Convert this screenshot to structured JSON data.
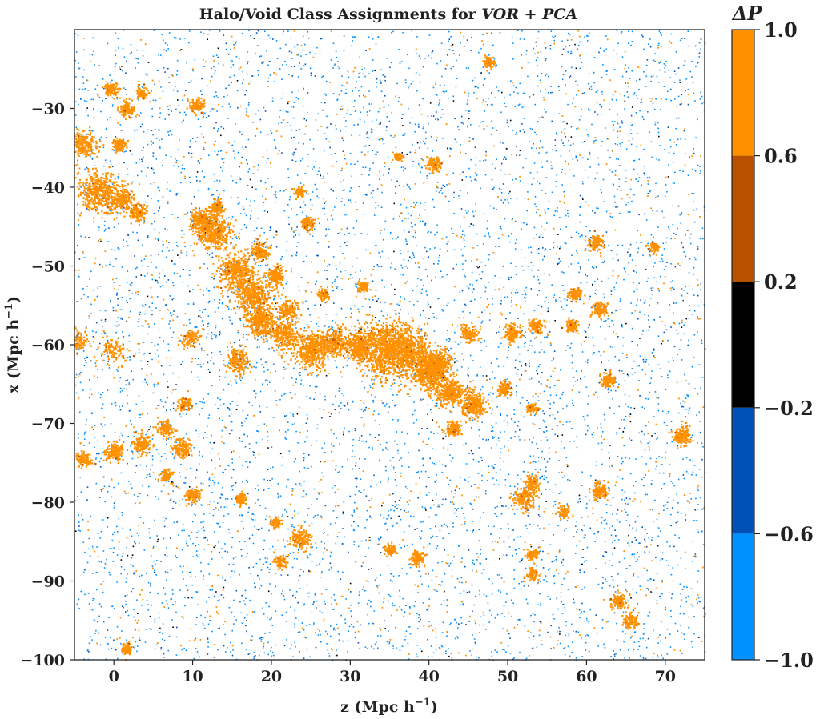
{
  "chart_data": {
    "type": "scatter",
    "title": "Halo/Void Class Assignments for ",
    "title_method": "VOR + PCA",
    "xlabel": "z (Mpc h",
    "xlabel_sup": "−1",
    "xlabel_end": ")",
    "ylabel": "x (Mpc h",
    "ylabel_sup": "−1",
    "ylabel_end": ")",
    "xlim": [
      -5,
      75
    ],
    "ylim": [
      -100,
      -20
    ],
    "xticks": [
      0,
      10,
      20,
      30,
      40,
      50,
      60,
      70
    ],
    "xtick_labels": [
      "0",
      "10",
      "20",
      "30",
      "40",
      "50",
      "60",
      "70"
    ],
    "yticks": [
      -30,
      -40,
      -50,
      -60,
      -70,
      -80,
      -90,
      -100
    ],
    "ytick_labels": [
      "−30",
      "−40",
      "−50",
      "−60",
      "−70",
      "−80",
      "−90",
      "−100"
    ],
    "colorbar": {
      "label": "ΔP",
      "ticks": [
        1.0,
        0.6,
        0.2,
        -0.2,
        -0.6,
        -1.0
      ],
      "tick_labels": [
        "1.0",
        "0.6",
        "0.2",
        "−0.2",
        "−0.6",
        "−1.0"
      ],
      "bins": [
        {
          "from": 0.6,
          "to": 1.0,
          "color": "#ff9100"
        },
        {
          "from": 0.2,
          "to": 0.6,
          "color": "#b85200"
        },
        {
          "from": -0.2,
          "to": 0.2,
          "color": "#000000"
        },
        {
          "from": -0.6,
          "to": -0.2,
          "color": "#0050b8"
        },
        {
          "from": -1.0,
          "to": -0.6,
          "color": "#0091ff"
        }
      ]
    },
    "series": [
      {
        "name": "Halo",
        "color": "#ff9100"
      },
      {
        "name": "Void",
        "color": "#0091ff"
      }
    ],
    "halo_clusters": [
      {
        "x": 34.5,
        "y": -60.5,
        "r": 3.2,
        "w": 2.4
      },
      {
        "x": 37.5,
        "y": -61.0,
        "r": 2.5,
        "w": 1.5
      },
      {
        "x": 31.0,
        "y": -60.0,
        "r": 1.6,
        "w": 0.9
      },
      {
        "x": 40.0,
        "y": -63.5,
        "r": 1.8,
        "w": 1.3
      },
      {
        "x": 42.5,
        "y": -66.0,
        "r": 1.5,
        "w": 1.0
      },
      {
        "x": 45.5,
        "y": -67.5,
        "r": 1.3,
        "w": 0.8
      },
      {
        "x": 41.0,
        "y": -62.0,
        "r": 1.5,
        "w": 0.7
      },
      {
        "x": 25.0,
        "y": -60.5,
        "r": 1.9,
        "w": 1.3
      },
      {
        "x": 28.0,
        "y": -59.5,
        "r": 1.5,
        "w": 0.7
      },
      {
        "x": 21.5,
        "y": -58.5,
        "r": 1.6,
        "w": 0.7
      },
      {
        "x": 18.5,
        "y": -57.0,
        "r": 1.6,
        "w": 1.0
      },
      {
        "x": 17.5,
        "y": -53.5,
        "r": 2.2,
        "w": 1.2
      },
      {
        "x": 15.5,
        "y": -50.5,
        "r": 2.0,
        "w": 1.0
      },
      {
        "x": 12.5,
        "y": -45.5,
        "r": 1.9,
        "w": 1.1
      },
      {
        "x": 11.0,
        "y": -44.0,
        "r": 1.2,
        "w": 0.5
      },
      {
        "x": -2.0,
        "y": -40.5,
        "r": 2.4,
        "w": 1.2
      },
      {
        "x": 1.0,
        "y": -41.5,
        "r": 1.4,
        "w": 0.5
      },
      {
        "x": -4.0,
        "y": -34.5,
        "r": 1.5,
        "w": 0.6
      },
      {
        "x": 20.5,
        "y": -51.0,
        "r": 1.0,
        "w": 0.5
      },
      {
        "x": 18.5,
        "y": -48.0,
        "r": 1.0,
        "w": 0.4
      },
      {
        "x": 22.0,
        "y": -55.5,
        "r": 1.1,
        "w": 0.4
      },
      {
        "x": 15.5,
        "y": -62.0,
        "r": 1.3,
        "w": 0.5
      },
      {
        "x": 43.0,
        "y": -70.5,
        "r": 0.9,
        "w": 0.3
      },
      {
        "x": 52.0,
        "y": -79.5,
        "r": 1.3,
        "w": 0.5
      },
      {
        "x": 53.0,
        "y": -77.5,
        "r": 0.9,
        "w": 0.3
      },
      {
        "x": 61.5,
        "y": -78.5,
        "r": 1.0,
        "w": 0.4
      },
      {
        "x": 64.0,
        "y": -92.5,
        "r": 0.9,
        "w": 0.3
      },
      {
        "x": 65.5,
        "y": -95.0,
        "r": 0.9,
        "w": 0.3
      },
      {
        "x": 72.0,
        "y": -71.5,
        "r": 1.0,
        "w": 0.4
      },
      {
        "x": 0.0,
        "y": -73.5,
        "r": 1.0,
        "w": 0.4
      },
      {
        "x": 3.5,
        "y": -72.5,
        "r": 1.1,
        "w": 0.4
      },
      {
        "x": 8.5,
        "y": -73.0,
        "r": 1.1,
        "w": 0.4
      },
      {
        "x": 6.5,
        "y": -70.5,
        "r": 0.9,
        "w": 0.3
      },
      {
        "x": -4.0,
        "y": -74.5,
        "r": 0.9,
        "w": 0.3
      },
      {
        "x": 23.5,
        "y": -84.5,
        "r": 1.2,
        "w": 0.4
      },
      {
        "x": 0.0,
        "y": -60.5,
        "r": 1.6,
        "w": 0.3
      },
      {
        "x": 3.0,
        "y": -43.0,
        "r": 1.0,
        "w": 0.4
      },
      {
        "x": 1.5,
        "y": -30.0,
        "r": 0.9,
        "w": 0.3
      },
      {
        "x": -0.5,
        "y": -27.5,
        "r": 0.8,
        "w": 0.3
      },
      {
        "x": 3.5,
        "y": -28.0,
        "r": 0.7,
        "w": 0.2
      },
      {
        "x": 10.5,
        "y": -29.5,
        "r": 0.8,
        "w": 0.3
      },
      {
        "x": 0.5,
        "y": -34.5,
        "r": 0.8,
        "w": 0.3
      },
      {
        "x": 13.0,
        "y": -42.5,
        "r": 0.8,
        "w": 0.3
      },
      {
        "x": 24.5,
        "y": -44.5,
        "r": 0.7,
        "w": 0.3
      },
      {
        "x": 23.5,
        "y": -40.5,
        "r": 0.6,
        "w": 0.2
      },
      {
        "x": 40.5,
        "y": -37.0,
        "r": 0.8,
        "w": 0.3
      },
      {
        "x": 61.0,
        "y": -47.0,
        "r": 0.9,
        "w": 0.3
      },
      {
        "x": 58.5,
        "y": -53.5,
        "r": 0.7,
        "w": 0.3
      },
      {
        "x": 61.5,
        "y": -55.5,
        "r": 0.8,
        "w": 0.3
      },
      {
        "x": 50.5,
        "y": -58.5,
        "r": 1.0,
        "w": 0.4
      },
      {
        "x": 53.5,
        "y": -57.5,
        "r": 0.8,
        "w": 0.3
      },
      {
        "x": 58.0,
        "y": -57.5,
        "r": 0.7,
        "w": 0.3
      },
      {
        "x": 49.5,
        "y": -65.5,
        "r": 0.8,
        "w": 0.3
      },
      {
        "x": 53.0,
        "y": -68.0,
        "r": 0.6,
        "w": 0.2
      },
      {
        "x": 53.0,
        "y": -86.5,
        "r": 0.7,
        "w": 0.2
      },
      {
        "x": 53.0,
        "y": -89.0,
        "r": 0.7,
        "w": 0.2
      },
      {
        "x": 57.0,
        "y": -81.0,
        "r": 0.7,
        "w": 0.2
      },
      {
        "x": 38.5,
        "y": -87.0,
        "r": 0.8,
        "w": 0.3
      },
      {
        "x": 35.0,
        "y": -86.0,
        "r": 0.6,
        "w": 0.2
      },
      {
        "x": 10.0,
        "y": -79.0,
        "r": 0.8,
        "w": 0.3
      },
      {
        "x": 6.5,
        "y": -76.5,
        "r": 0.7,
        "w": 0.2
      },
      {
        "x": 16.0,
        "y": -79.5,
        "r": 0.6,
        "w": 0.2
      },
      {
        "x": 20.5,
        "y": -82.5,
        "r": 0.6,
        "w": 0.2
      },
      {
        "x": 21.0,
        "y": -87.5,
        "r": 0.8,
        "w": 0.2
      },
      {
        "x": 1.5,
        "y": -98.5,
        "r": 0.6,
        "w": 0.2
      },
      {
        "x": 47.5,
        "y": -24.0,
        "r": 0.7,
        "w": 0.2
      },
      {
        "x": 45.0,
        "y": -58.5,
        "r": 1.0,
        "w": 0.3
      },
      {
        "x": -4.5,
        "y": -59.5,
        "r": 1.4,
        "w": 0.3
      },
      {
        "x": 9.5,
        "y": -59.0,
        "r": 1.0,
        "w": 0.3
      },
      {
        "x": 9.0,
        "y": -67.5,
        "r": 0.8,
        "w": 0.2
      },
      {
        "x": 36.0,
        "y": -36.0,
        "r": 0.5,
        "w": 0.15
      },
      {
        "x": 68.5,
        "y": -47.5,
        "r": 0.6,
        "w": 0.2
      },
      {
        "x": 62.5,
        "y": -64.5,
        "r": 0.8,
        "w": 0.3
      },
      {
        "x": 26.5,
        "y": -53.5,
        "r": 0.7,
        "w": 0.2
      },
      {
        "x": 31.5,
        "y": -52.5,
        "r": 0.6,
        "w": 0.2
      }
    ]
  }
}
